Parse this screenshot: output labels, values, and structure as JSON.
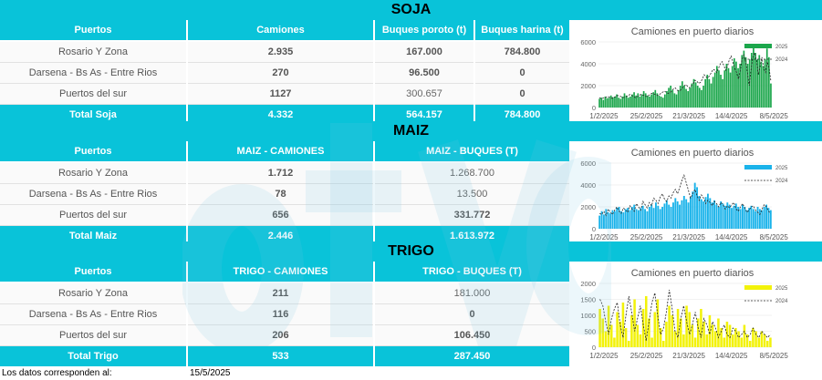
{
  "colors": {
    "accent": "#09c3d9",
    "soja_bar": "#1ba64b",
    "maiz_bar": "#1ab3ea",
    "trigo_bar": "#f2f20a"
  },
  "soja": {
    "title": "SOJA",
    "headers": [
      "Puertos",
      "Camiones",
      "Buques poroto (t)",
      "Buques harina (t)"
    ],
    "rows": [
      [
        "Rosario Y Zona",
        "2.935",
        "167.000",
        "784.800"
      ],
      [
        "Darsena - Bs As - Entre Rios",
        "270",
        "96.500",
        "0"
      ],
      [
        "Puertos del sur",
        "1127",
        "300.657",
        "0"
      ]
    ],
    "total": [
      "Total Soja",
      "4.332",
      "564.157",
      "784.800"
    ]
  },
  "maiz": {
    "title": "MAIZ",
    "headers": [
      "Puertos",
      "MAIZ - CAMIONES",
      "MAIZ - BUQUES (T)"
    ],
    "rows": [
      [
        "Rosario Y Zona",
        "1.712",
        "1.268.700"
      ],
      [
        "Darsena - Bs As - Entre Rios",
        "78",
        "13.500"
      ],
      [
        "Puertos del sur",
        "656",
        "331.772"
      ]
    ],
    "total": [
      "Total Maiz",
      "2.446",
      "1.613.972"
    ]
  },
  "trigo": {
    "title": "TRIGO",
    "headers": [
      "Puertos",
      "TRIGO - CAMIONES",
      "TRIGO - BUQUES (T)"
    ],
    "rows": [
      [
        "Rosario Y Zona",
        "211",
        "181.000"
      ],
      [
        "Darsena - Bs As - Entre Rios",
        "116",
        "0"
      ],
      [
        "Puertos del sur",
        "206",
        "106.450"
      ]
    ],
    "total": [
      "Total Trigo",
      "533",
      "287.450"
    ]
  },
  "chart_data": [
    {
      "type": "bar",
      "title": "Camiones en puerto diarios",
      "x_ticks": [
        "1/2/2025",
        "25/2/2025",
        "21/3/2025",
        "14/4/2025",
        "8/5/2025"
      ],
      "y_ticks": [
        "0",
        "2000",
        "4000",
        "6000"
      ],
      "ylim": [
        0,
        6000
      ],
      "legend_position": "right",
      "series": [
        {
          "name": "2025",
          "kind": "bar",
          "values": [
            800,
            900,
            700,
            1000,
            850,
            900,
            1100,
            950,
            1000,
            1200,
            900,
            800,
            1000,
            1300,
            1100,
            900,
            1000,
            1200,
            1400,
            1100,
            1300,
            1000,
            1200,
            1500,
            1300,
            1100,
            1000,
            1200,
            1400,
            1600,
            1300,
            1100,
            1000,
            900,
            1200,
            1500,
            1800,
            2000,
            1600,
            1300,
            1200,
            1600,
            2000,
            2400,
            2000,
            1700,
            1500,
            1800,
            2200,
            2600,
            2300,
            2000,
            1800,
            1600,
            2000,
            2600,
            3000,
            2600,
            2200,
            2800,
            3200,
            3800,
            3400,
            3000,
            2600,
            3400,
            4000,
            3600,
            3200,
            3800,
            4500,
            4200,
            3600,
            4000,
            4800,
            5200,
            4600,
            4000,
            4400,
            5000,
            5600,
            5000,
            4400,
            4800,
            4200,
            3800,
            4400,
            5400,
            4600,
            2200
          ]
        },
        {
          "name": "2024",
          "kind": "line",
          "values": [
            900,
            800,
            850,
            900,
            950,
            1000,
            900,
            850,
            900,
            1000,
            1100,
            1050,
            1000,
            900,
            950,
            1000,
            1100,
            1200,
            1100,
            1000,
            900,
            1000,
            1100,
            1200,
            1150,
            1100,
            1000,
            1050,
            1200,
            1300,
            1250,
            1200,
            1100,
            1150,
            1300,
            1400,
            1500,
            1400,
            1300,
            1350,
            1500,
            1700,
            1800,
            1600,
            1500,
            1600,
            1800,
            2000,
            2100,
            1900,
            1800,
            2000,
            2200,
            2500,
            2400,
            2200,
            2300,
            2600,
            3000,
            2800,
            2700,
            2900,
            3200,
            3500,
            3400,
            3200,
            3600,
            4000,
            4200,
            3800,
            3400,
            3800,
            4400,
            4700,
            4100,
            3600,
            3200,
            2600,
            3400,
            4400,
            4800,
            4200,
            3200,
            2000,
            3400,
            4600,
            5000,
            4300,
            3000,
            3800,
            4600,
            3600,
            3200,
            4200,
            3600,
            2400
          ]
        }
      ]
    },
    {
      "type": "bar",
      "title": "Camiones en puerto diarios",
      "x_ticks": [
        "1/2/2025",
        "25/2/2025",
        "21/3/2025",
        "14/4/2025",
        "8/5/2025"
      ],
      "y_ticks": [
        "0",
        "2000",
        "4000",
        "6000"
      ],
      "ylim": [
        0,
        6000
      ],
      "legend_position": "right",
      "series": [
        {
          "name": "2025",
          "kind": "bar",
          "values": [
            1200,
            1600,
            1300,
            1800,
            1500,
            1400,
            1700,
            1600,
            1900,
            2000,
            1600,
            1500,
            1800,
            1900,
            1700,
            2000,
            2200,
            1800,
            1700,
            1900,
            2100,
            1800,
            1600,
            2000,
            2200,
            1900,
            2400,
            2100,
            1800,
            2000,
            2300,
            2600,
            2200,
            2000,
            2400,
            2800,
            2500,
            2200,
            2600,
            3000,
            2700,
            2400,
            2900,
            3400,
            4200,
            3800,
            3000,
            2700,
            2500,
            2900,
            3200,
            2800,
            2400,
            2600,
            2200,
            2000,
            2500,
            2300,
            2100,
            2400,
            2200,
            1900,
            2100,
            2300,
            2000,
            1800,
            2200,
            2000,
            1700,
            1900,
            2100,
            1800,
            1600,
            2000,
            1800,
            1700,
            2000,
            2200,
            1900,
            1700
          ]
        },
        {
          "name": "2024",
          "kind": "line",
          "values": [
            1400,
            1300,
            1600,
            1200,
            1800,
            1500,
            1300,
            1700,
            2000,
            1600,
            1400,
            1900,
            1700,
            1500,
            2100,
            1800,
            1600,
            2300,
            2000,
            1700,
            2500,
            2200,
            1900,
            2400,
            2100,
            2800,
            2600,
            2300,
            2900,
            3200,
            2700,
            2500,
            3000,
            2800,
            3300,
            3600,
            3200,
            3800,
            4400,
            4900,
            4200,
            3500,
            2800,
            3200,
            3600,
            3000,
            2600,
            3100,
            2800,
            2300,
            2600,
            2400,
            2100,
            2500,
            2300,
            2000,
            2400,
            2200,
            1800,
            2100,
            1900,
            2200,
            2400,
            1800,
            1600,
            2000,
            2300,
            1900,
            1500,
            1700,
            2000,
            2100,
            1700,
            1500,
            1300,
            1800,
            2200,
            2000,
            1600,
            1400
          ]
        }
      ]
    },
    {
      "type": "bar",
      "title": "Camiones en puerto diarios",
      "x_ticks": [
        "1/2/2025",
        "25/2/2025",
        "21/3/2025",
        "14/4/2025",
        "8/5/2025"
      ],
      "y_ticks": [
        "0",
        "500",
        "1000",
        "1500",
        "2000"
      ],
      "ylim": [
        0,
        2000
      ],
      "legend_position": "right",
      "series": [
        {
          "name": "2025",
          "kind": "bar",
          "values": [
            1200,
            900,
            500,
            1300,
            700,
            300,
            1100,
            800,
            1400,
            600,
            200,
            1000,
            1500,
            700,
            400,
            1200,
            1600,
            900,
            300,
            1100,
            1500,
            600,
            200,
            800,
            1300,
            1000,
            500,
            1200,
            900,
            400,
            1300,
            1100,
            700,
            300,
            900,
            1200,
            800,
            400,
            1000,
            700,
            500,
            900,
            600,
            300,
            800,
            700,
            400,
            600,
            500,
            300,
            700,
            400,
            200,
            600,
            500,
            300,
            500,
            400,
            200,
            300
          ]
        },
        {
          "name": "2024",
          "kind": "line",
          "values": [
            1500,
            1300,
            800,
            400,
            900,
            1200,
            1400,
            700,
            300,
            1000,
            1600,
            1100,
            500,
            900,
            1300,
            700,
            200,
            800,
            1400,
            1700,
            1000,
            400,
            600,
            1100,
            1800,
            1200,
            500,
            300,
            900,
            1300,
            800,
            400,
            700,
            1100,
            600,
            300,
            900,
            700,
            400,
            800,
            600,
            300,
            500,
            700,
            400,
            300,
            600,
            500,
            300,
            400,
            500,
            300,
            400,
            600,
            400,
            300,
            500,
            400,
            300,
            400
          ]
        }
      ]
    }
  ],
  "footer": {
    "label": "Los datos corresponden al:",
    "date": "15/5/2025"
  }
}
